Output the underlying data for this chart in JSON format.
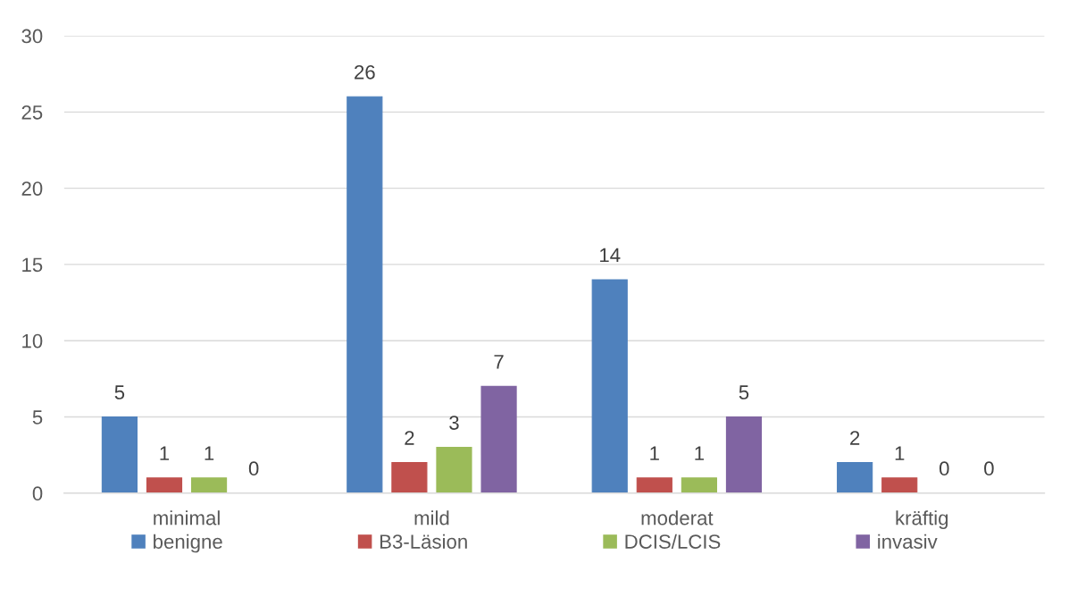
{
  "chart_data": {
    "type": "bar",
    "categories": [
      "minimal",
      "mild",
      "moderat",
      "kräftig"
    ],
    "series": [
      {
        "name": "benigne",
        "color": "#4f81bd",
        "values": [
          5,
          26,
          14,
          2
        ]
      },
      {
        "name": "B3-Läsion",
        "color": "#c0504d",
        "values": [
          1,
          2,
          1,
          1
        ]
      },
      {
        "name": "DCIS/LCIS",
        "color": "#9bbb59",
        "values": [
          1,
          3,
          1,
          0
        ]
      },
      {
        "name": "invasiv",
        "color": "#8064a2",
        "values": [
          0,
          7,
          5,
          0
        ]
      }
    ],
    "ylim": [
      0,
      30
    ],
    "yticks": [
      0,
      5,
      10,
      15,
      20,
      25,
      30
    ],
    "grid": "y",
    "legend": "bottom",
    "data_labels": true
  }
}
